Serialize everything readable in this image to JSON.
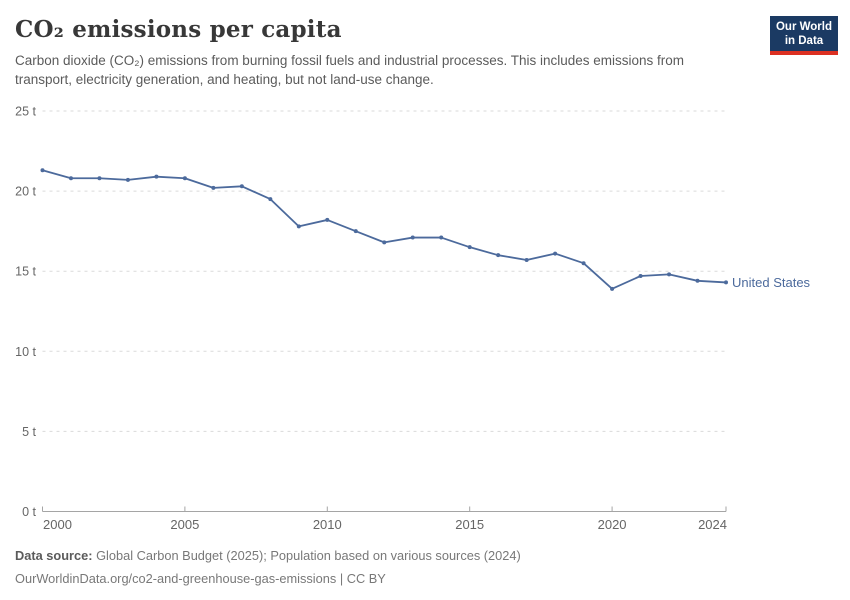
{
  "header": {
    "title": "CO₂ emissions per capita",
    "subtitle": "Carbon dioxide (CO₂) emissions from burning fossil fuels and industrial processes. This includes emissions from transport, electricity generation, and heating, but not land-use change.",
    "logo": {
      "line1": "Our World",
      "line2": "in Data",
      "bg_color": "#1b3a63",
      "bar_color": "#dc3022"
    }
  },
  "chart_data": {
    "type": "line",
    "title": "CO₂ emissions per capita",
    "xlabel": "",
    "ylabel": "",
    "unit": "t",
    "x": [
      2000,
      2001,
      2002,
      2003,
      2004,
      2005,
      2006,
      2007,
      2008,
      2009,
      2010,
      2011,
      2012,
      2013,
      2014,
      2015,
      2016,
      2017,
      2018,
      2019,
      2020,
      2021,
      2022,
      2023,
      2024
    ],
    "series": [
      {
        "name": "United States",
        "color": "#4c6a9c",
        "values": [
          21.3,
          20.8,
          20.8,
          20.7,
          20.9,
          20.8,
          20.2,
          20.3,
          19.5,
          17.8,
          18.2,
          17.5,
          16.8,
          17.1,
          17.1,
          16.5,
          16.0,
          15.7,
          16.1,
          15.5,
          13.9,
          14.7,
          14.8,
          14.4,
          14.3
        ]
      }
    ],
    "xlim": [
      2000,
      2024
    ],
    "ylim": [
      0,
      25
    ],
    "yticks": [
      {
        "value": 0,
        "label": "0 t"
      },
      {
        "value": 5,
        "label": "5 t"
      },
      {
        "value": 10,
        "label": "10 t"
      },
      {
        "value": 15,
        "label": "15 t"
      },
      {
        "value": 20,
        "label": "20 t"
      },
      {
        "value": 25,
        "label": "25 t"
      }
    ],
    "xticks": [
      {
        "value": 2000,
        "label": "2000"
      },
      {
        "value": 2005,
        "label": "2005"
      },
      {
        "value": 2010,
        "label": "2010"
      },
      {
        "value": 2015,
        "label": "2015"
      },
      {
        "value": 2020,
        "label": "2020"
      },
      {
        "value": 2024,
        "label": "2024"
      }
    ],
    "grid": "horizontal-dashed",
    "legend_position": "end-of-line-label",
    "entity_label": "United States",
    "colors": {
      "line": "#4c6a9c",
      "gridline": "#dadada",
      "axis_line": "#a5a5a5",
      "tick_label": "#666666"
    }
  },
  "footer": {
    "data_source_label": "Data source:",
    "data_source_text": " Global Carbon Budget (2025); Population based on various sources (2024)",
    "attribution": "OurWorldinData.org/co2-and-greenhouse-gas-emissions | CC BY"
  }
}
